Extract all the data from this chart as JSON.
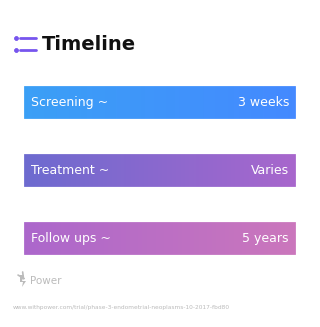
{
  "title": "Timeline",
  "title_fontsize": 14,
  "title_color": "#111111",
  "background_color": "#ffffff",
  "rows": [
    {
      "label": "Screening ~",
      "value": "3 weeks",
      "color_left": "#3aa0f5",
      "color_right": "#4488ff"
    },
    {
      "label": "Treatment ~",
      "value": "Varies",
      "color_left": "#6a6acf",
      "color_right": "#aa66cc"
    },
    {
      "label": "Follow ups ~",
      "value": "5 years",
      "color_left": "#aa66cc",
      "color_right": "#cc77bb"
    }
  ],
  "label_fontsize": 9,
  "value_fontsize": 9,
  "text_color": "#ffffff",
  "footer_text": "Power",
  "footer_color": "#bbbbbb",
  "footer_fontsize": 7.5,
  "url_text": "www.withpower.com/trial/phase-3-endometrial-neoplasms-10-2017-fbd80",
  "url_color": "#bbbbbb",
  "url_fontsize": 4.2,
  "icon_color": "#7755ee"
}
